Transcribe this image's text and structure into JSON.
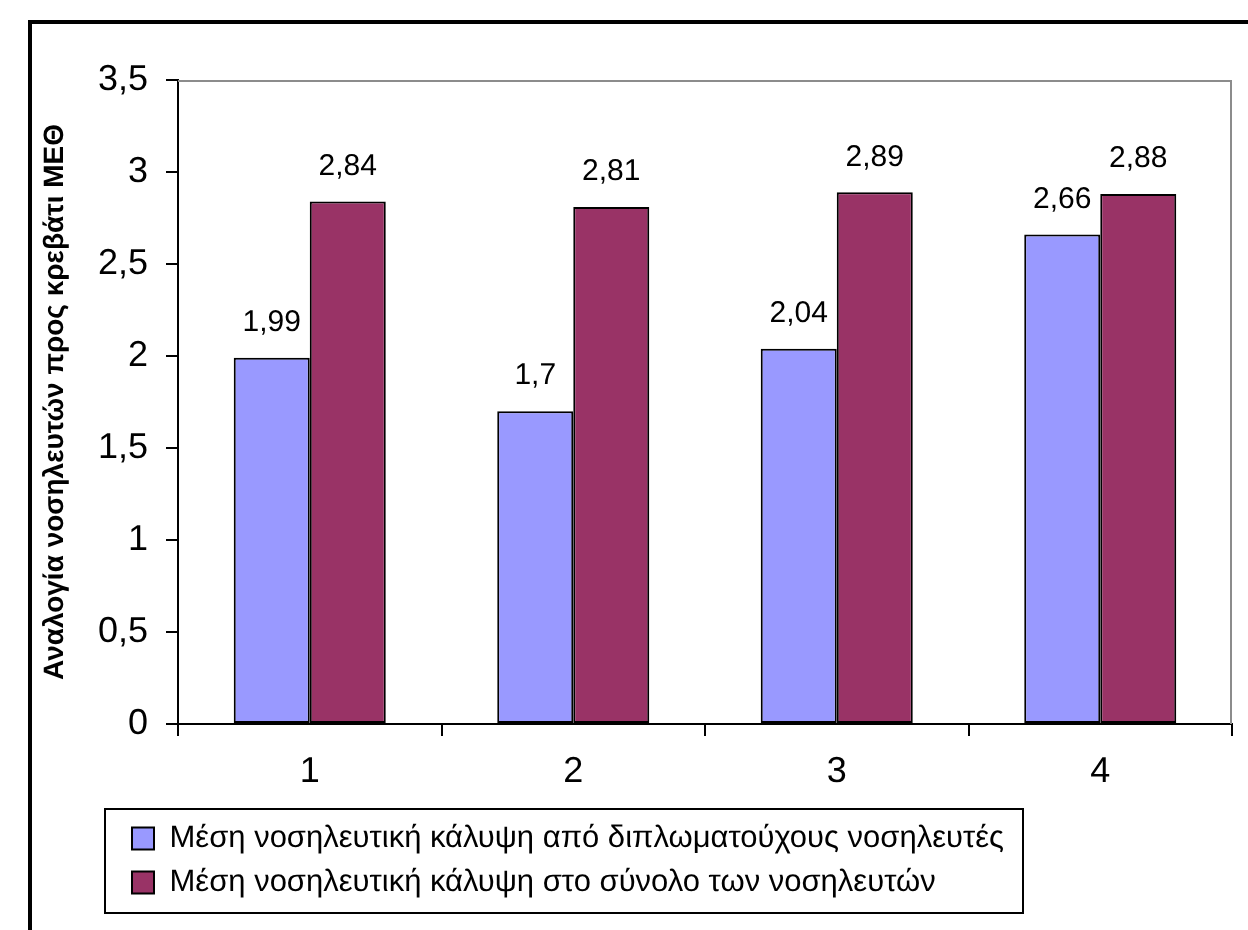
{
  "chart_data": {
    "type": "bar",
    "ylabel": "Αναλογία νοσηλευτών προς κρεβάτι ΜΕΘ",
    "categories": [
      "1",
      "2",
      "3",
      "4"
    ],
    "series": [
      {
        "name": "Μέση νοσηλευτική κάλυψη από διπλωματούχους νοσηλευτές",
        "color": "#9999ff",
        "values": [
          1.99,
          1.7,
          2.04,
          2.66
        ],
        "value_labels": [
          "1,99",
          "1,7",
          "2,04",
          "2,66"
        ]
      },
      {
        "name": "Μέση νοσηλευτική κάλυψη στο σύνολο των νοσηλευτών",
        "color": "#993366",
        "values": [
          2.84,
          2.81,
          2.89,
          2.88
        ],
        "value_labels": [
          "2,84",
          "2,81",
          "2,89",
          "2,88"
        ]
      }
    ],
    "ylim": [
      0,
      3.5
    ],
    "yticks": [
      0,
      {
        "value": 0.5,
        "label": "0,5"
      },
      1,
      {
        "value": 1.5,
        "label": "1,5"
      },
      2,
      {
        "value": 2.5,
        "label": "2,5"
      },
      3,
      {
        "value": 3.5,
        "label": "3,5"
      }
    ],
    "grid": false,
    "legend": "bottom"
  }
}
